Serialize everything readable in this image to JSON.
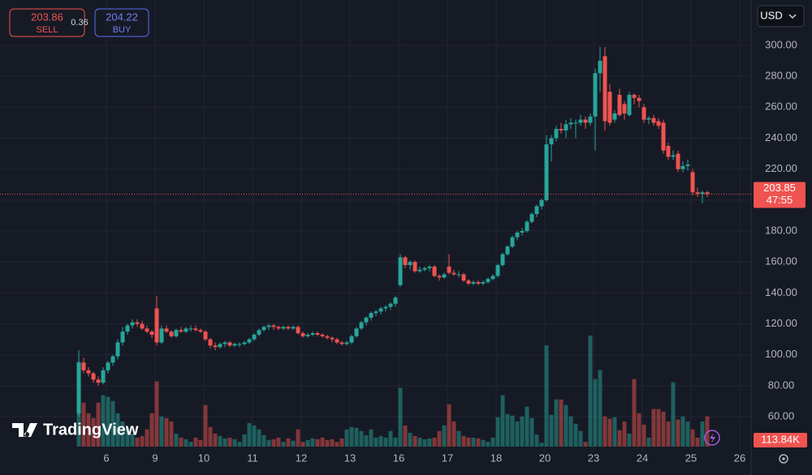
{
  "toolbar": {
    "sell_price": "203.86",
    "sell_label": "SELL",
    "spread": "0.36",
    "buy_price": "204.22",
    "buy_label": "BUY",
    "currency": "USD",
    "logo": "TradingView"
  },
  "chart_data": {
    "type": "candlestick",
    "up_color": "#26a69a",
    "down_color": "#ef5350",
    "grid": true,
    "xlim": [
      -16.17,
      138
    ],
    "xticks": [
      {
        "value": 5.67,
        "label": "6"
      },
      {
        "value": 15.67,
        "label": "9"
      },
      {
        "value": 25.67,
        "label": "10"
      },
      {
        "value": 35.67,
        "label": "11"
      },
      {
        "value": 45.67,
        "label": "12"
      },
      {
        "value": 55.67,
        "label": "13"
      },
      {
        "value": 65.67,
        "label": "16"
      },
      {
        "value": 75.67,
        "label": "17"
      },
      {
        "value": 85.67,
        "label": "18"
      },
      {
        "value": 95.67,
        "label": "20"
      },
      {
        "value": 105.67,
        "label": "23"
      },
      {
        "value": 115.67,
        "label": "24"
      },
      {
        "value": 125.67,
        "label": "25"
      },
      {
        "value": 135.67,
        "label": "26"
      }
    ],
    "ylim": [
      37,
      329.3
    ],
    "yticks": [
      {
        "value": 60,
        "label": "60.00"
      },
      {
        "value": 80,
        "label": "80.00"
      },
      {
        "value": 100,
        "label": "100.00"
      },
      {
        "value": 120,
        "label": "120.00"
      },
      {
        "value": 140,
        "label": "140.00"
      },
      {
        "value": 160,
        "label": "160.00"
      },
      {
        "value": 180,
        "label": "180.00"
      },
      {
        "value": 200,
        "label": "200.00"
      },
      {
        "value": 220,
        "label": "220.00"
      },
      {
        "value": 240,
        "label": "240.00"
      },
      {
        "value": 260,
        "label": "260.00"
      },
      {
        "value": 280,
        "label": "280.00"
      },
      {
        "value": 300,
        "label": "300.00"
      }
    ],
    "price_line": {
      "value": 203.85,
      "countdown": "47:55"
    },
    "last_volume_label": "113.84K",
    "ohlc": [
      [
        62,
        103,
        60,
        95
      ],
      [
        95,
        98,
        88,
        90
      ],
      [
        90,
        92,
        86,
        88
      ],
      [
        88,
        89,
        82,
        84
      ],
      [
        84,
        86,
        80,
        82
      ],
      [
        82,
        92,
        81,
        90
      ],
      [
        90,
        96,
        88,
        95
      ],
      [
        95,
        100,
        93,
        99
      ],
      [
        99,
        110,
        97,
        108
      ],
      [
        108,
        118,
        106,
        115
      ],
      [
        115,
        120,
        113,
        119
      ],
      [
        119,
        123,
        117,
        121
      ],
      [
        121,
        123,
        118,
        120
      ],
      [
        120,
        122,
        116,
        117
      ],
      [
        117,
        119,
        114,
        115
      ],
      [
        115,
        116,
        111,
        113
      ],
      [
        130,
        138,
        106,
        108
      ],
      [
        108,
        119,
        107,
        117
      ],
      [
        117,
        119,
        114,
        115
      ],
      [
        115,
        116,
        111,
        112
      ],
      [
        112,
        117,
        111,
        116
      ],
      [
        116,
        118,
        114,
        115
      ],
      [
        115,
        118,
        114,
        117
      ],
      [
        117,
        119,
        115,
        117
      ],
      [
        117,
        119,
        115,
        116
      ],
      [
        116,
        117,
        114,
        115
      ],
      [
        115,
        116,
        109,
        110
      ],
      [
        110,
        111,
        104,
        106
      ],
      [
        106,
        108,
        103,
        105
      ],
      [
        105,
        108,
        104,
        107
      ],
      [
        107,
        109,
        105,
        108
      ],
      [
        108,
        109,
        105,
        106
      ],
      [
        106,
        108,
        105,
        107
      ],
      [
        107,
        108,
        105,
        107
      ],
      [
        107,
        109,
        106,
        108
      ],
      [
        108,
        111,
        107,
        110
      ],
      [
        110,
        114,
        109,
        113
      ],
      [
        113,
        117,
        112,
        116
      ],
      [
        116,
        119,
        115,
        118
      ],
      [
        118,
        120,
        116,
        119
      ],
      [
        119,
        120,
        116,
        118
      ],
      [
        118,
        119,
        116,
        117
      ],
      [
        117,
        119,
        116,
        118
      ],
      [
        118,
        119,
        116,
        117
      ],
      [
        117,
        119,
        116,
        118
      ],
      [
        118,
        119,
        113,
        114
      ],
      [
        114,
        115,
        111,
        112
      ],
      [
        112,
        114,
        111,
        113
      ],
      [
        113,
        115,
        112,
        114
      ],
      [
        114,
        115,
        112,
        113
      ],
      [
        113,
        114,
        111,
        112
      ],
      [
        112,
        113,
        110,
        111
      ],
      [
        111,
        112,
        108,
        110
      ],
      [
        110,
        111,
        107,
        108
      ],
      [
        108,
        109,
        106,
        107
      ],
      [
        107,
        109,
        106,
        108
      ],
      [
        108,
        113,
        107,
        112
      ],
      [
        112,
        118,
        111,
        117
      ],
      [
        117,
        122,
        116,
        121
      ],
      [
        121,
        125,
        119,
        124
      ],
      [
        124,
        128,
        122,
        127
      ],
      [
        127,
        129,
        125,
        128
      ],
      [
        128,
        131,
        126,
        130
      ],
      [
        130,
        132,
        128,
        131
      ],
      [
        131,
        134,
        129,
        133
      ],
      [
        133,
        138,
        131,
        137
      ],
      [
        145,
        165,
        144,
        163
      ],
      [
        163,
        164,
        156,
        158
      ],
      [
        158,
        161,
        155,
        160
      ],
      [
        160,
        161,
        153,
        154
      ],
      [
        154,
        157,
        153,
        155
      ],
      [
        155,
        157,
        154,
        156
      ],
      [
        156,
        158,
        154,
        157
      ],
      [
        157,
        158,
        150,
        151
      ],
      [
        151,
        152,
        148,
        150
      ],
      [
        150,
        153,
        149,
        152
      ],
      [
        157,
        165,
        152,
        153
      ],
      [
        153,
        155,
        151,
        152
      ],
      [
        152,
        154,
        150,
        152
      ],
      [
        152,
        153,
        147,
        148
      ],
      [
        148,
        149,
        145,
        146
      ],
      [
        146,
        148,
        145,
        147
      ],
      [
        147,
        148,
        145,
        146
      ],
      [
        146,
        148,
        145,
        147
      ],
      [
        147,
        150,
        146,
        149
      ],
      [
        149,
        152,
        148,
        151
      ],
      [
        151,
        159,
        150,
        158
      ],
      [
        158,
        166,
        157,
        165
      ],
      [
        165,
        171,
        164,
        170
      ],
      [
        170,
        177,
        169,
        176
      ],
      [
        176,
        180,
        174,
        179
      ],
      [
        179,
        182,
        177,
        180
      ],
      [
        180,
        187,
        179,
        186
      ],
      [
        186,
        192,
        185,
        191
      ],
      [
        191,
        197,
        189,
        196
      ],
      [
        196,
        201,
        194,
        200
      ],
      [
        200,
        242,
        199,
        236
      ],
      [
        236,
        242,
        225,
        240
      ],
      [
        240,
        248,
        238,
        246
      ],
      [
        246,
        250,
        243,
        245
      ],
      [
        245,
        252,
        240,
        249
      ],
      [
        249,
        253,
        246,
        250
      ],
      [
        250,
        252,
        240,
        250
      ],
      [
        250,
        255,
        248,
        252
      ],
      [
        252,
        254,
        246,
        250
      ],
      [
        250,
        256,
        248,
        254
      ],
      [
        254,
        285,
        232,
        282
      ],
      [
        282,
        299,
        270,
        290
      ],
      [
        293,
        299,
        245,
        251
      ],
      [
        270,
        275,
        248,
        250
      ],
      [
        252,
        258,
        250,
        256
      ],
      [
        268,
        272,
        254,
        255
      ],
      [
        262,
        264,
        252,
        256
      ],
      [
        255,
        270,
        254,
        268
      ],
      [
        268,
        269,
        262,
        266
      ],
      [
        266,
        268,
        260,
        264
      ],
      [
        260,
        262,
        250,
        252
      ],
      [
        252,
        254,
        249,
        253
      ],
      [
        253,
        255,
        248,
        250
      ],
      [
        251,
        253,
        246,
        248
      ],
      [
        250,
        252,
        230,
        232
      ],
      [
        235,
        237,
        226,
        228
      ],
      [
        228,
        232,
        226,
        229
      ],
      [
        230,
        232,
        218,
        220
      ],
      [
        220,
        225,
        218,
        222
      ],
      [
        222,
        226,
        219,
        223
      ],
      [
        218,
        220,
        203,
        205
      ],
      [
        205,
        208,
        202,
        204
      ],
      [
        204,
        206,
        198,
        205
      ],
      [
        205,
        206,
        202,
        203.85
      ]
    ],
    "volume": [
      320,
      166,
      126,
      108,
      166,
      194,
      188,
      172,
      126,
      95,
      71,
      49,
      34,
      40,
      65,
      126,
      246,
      114,
      108,
      95,
      49,
      34,
      28,
      18,
      34,
      25,
      157,
      74,
      49,
      40,
      31,
      34,
      28,
      18,
      46,
      89,
      80,
      65,
      43,
      25,
      28,
      34,
      18,
      31,
      22,
      65,
      18,
      25,
      31,
      28,
      34,
      25,
      28,
      18,
      31,
      65,
      74,
      71,
      59,
      43,
      65,
      34,
      40,
      34,
      59,
      34,
      222,
      80,
      52,
      40,
      34,
      28,
      31,
      34,
      59,
      80,
      160,
      95,
      59,
      40,
      34,
      34,
      31,
      25,
      18,
      34,
      111,
      194,
      123,
      117,
      95,
      114,
      151,
      108,
      46,
      15,
      382,
      120,
      178,
      178,
      157,
      114,
      86,
      59,
      18,
      419,
      255,
      289,
      114,
      105,
      111,
      62,
      95,
      49,
      255,
      126,
      83,
      34,
      142,
      142,
      132,
      95,
      243,
      102,
      114,
      95,
      65,
      34,
      95,
      113.84
    ]
  }
}
